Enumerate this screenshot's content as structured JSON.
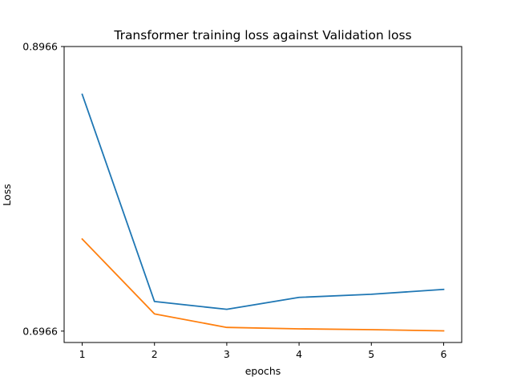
{
  "chart_data": {
    "type": "line",
    "title": "Transformer training loss against Validation loss",
    "xlabel": "epochs",
    "ylabel": "Loss",
    "x": [
      1,
      2,
      3,
      4,
      5,
      6
    ],
    "xticks": [
      "1",
      "2",
      "3",
      "4",
      "5",
      "6"
    ],
    "xlim": [
      0.75,
      6.25
    ],
    "yticks": [
      "0.6966",
      "0.8966"
    ],
    "ytick_values": [
      0.6966,
      0.8966
    ],
    "ylim": [
      0.6886,
      0.8966
    ],
    "grid": false,
    "series": [
      {
        "values": [
          0.863,
          0.7174,
          0.7119,
          0.7203,
          0.7225,
          0.7259
        ],
        "color": "#1f77b4"
      },
      {
        "values": [
          0.7613,
          0.7087,
          0.6992,
          0.6982,
          0.6976,
          0.6968
        ],
        "color": "#ff7f0e"
      }
    ]
  }
}
